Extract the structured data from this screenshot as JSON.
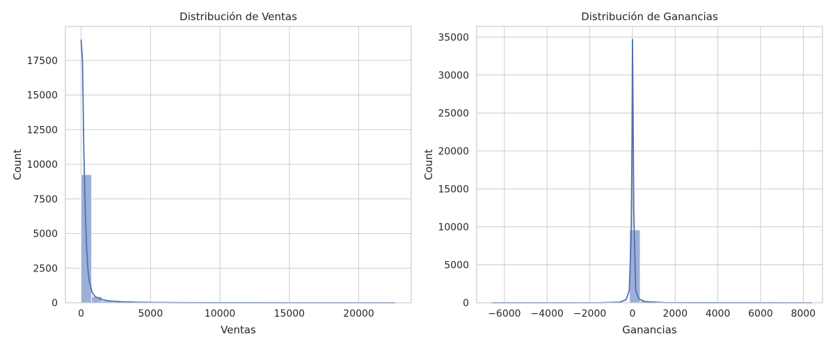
{
  "chart_data": [
    {
      "type": "histogram",
      "title": "Distribución de Ventas",
      "xlabel": "Ventas",
      "ylabel": "Count",
      "xlim": [
        -1130,
        23780
      ],
      "ylim": [
        0,
        19950
      ],
      "xticks": [
        0,
        5000,
        10000,
        15000,
        20000
      ],
      "yticks": [
        0,
        2500,
        5000,
        7500,
        10000,
        12500,
        15000,
        17500
      ],
      "grid": true,
      "bins": [
        {
          "x0": 0,
          "x1": 755,
          "count": 9250
        },
        {
          "x0": 755,
          "x1": 1510,
          "count": 440
        },
        {
          "x0": 1510,
          "x1": 2265,
          "count": 140
        },
        {
          "x0": 2265,
          "x1": 3020,
          "count": 80
        },
        {
          "x0": 3020,
          "x1": 3775,
          "count": 40
        },
        {
          "x0": 3775,
          "x1": 4530,
          "count": 25
        },
        {
          "x0": 4530,
          "x1": 5285,
          "count": 15
        },
        {
          "x0": 5285,
          "x1": 6040,
          "count": 8
        },
        {
          "x0": 6040,
          "x1": 6795,
          "count": 5
        },
        {
          "x0": 6795,
          "x1": 7550,
          "count": 3
        }
      ],
      "kde": {
        "x": [
          0,
          100,
          200,
          300,
          400,
          500,
          600,
          800,
          1000,
          1500,
          2000,
          2500,
          3000,
          4000,
          5000,
          7000,
          10000,
          15000,
          22640
        ],
        "y": [
          19000,
          17500,
          10800,
          6600,
          3900,
          2300,
          1500,
          750,
          450,
          230,
          140,
          100,
          70,
          40,
          25,
          10,
          4,
          1,
          0
        ]
      }
    },
    {
      "type": "histogram",
      "title": "Distribución de Ganancias",
      "xlabel": "Ganancias",
      "ylabel": "Count",
      "xlim": [
        -7300,
        8900
      ],
      "ylim": [
        0,
        36400
      ],
      "xticks": [
        -6000,
        -4000,
        -2000,
        0,
        2000,
        4000,
        6000,
        8000
      ],
      "yticks": [
        0,
        5000,
        10000,
        15000,
        20000,
        25000,
        30000,
        35000
      ],
      "grid": true,
      "bins": [
        {
          "x0": -6600,
          "x1": -6103,
          "count": 1
        },
        {
          "x0": -3120,
          "x1": -2623,
          "count": 2
        },
        {
          "x0": -2126,
          "x1": -1629,
          "count": 3
        },
        {
          "x0": -1132,
          "x1": -635,
          "count": 10
        },
        {
          "x0": -635,
          "x1": -138,
          "count": 60
        },
        {
          "x0": -138,
          "x1": 359,
          "count": 9600
        },
        {
          "x0": 359,
          "x1": 856,
          "count": 220
        },
        {
          "x0": 856,
          "x1": 1353,
          "count": 55
        },
        {
          "x0": 1353,
          "x1": 1850,
          "count": 25
        },
        {
          "x0": 1850,
          "x1": 2347,
          "count": 12
        },
        {
          "x0": 2347,
          "x1": 2844,
          "count": 6
        },
        {
          "x0": 2844,
          "x1": 3341,
          "count": 4
        },
        {
          "x0": 3341,
          "x1": 4000,
          "count": 3
        },
        {
          "x0": 5000,
          "x1": 5497,
          "count": 1
        },
        {
          "x0": 8300,
          "x1": 8400,
          "count": 1
        }
      ],
      "kde": {
        "x": [
          -6600,
          -3000,
          -1500,
          -600,
          -300,
          -150,
          -60,
          -20,
          0,
          20,
          60,
          150,
          300,
          600,
          1500,
          3000,
          8400
        ],
        "y": [
          0,
          3,
          15,
          80,
          400,
          1600,
          9000,
          22000,
          34700,
          28000,
          12000,
          1600,
          500,
          150,
          25,
          5,
          0
        ]
      }
    }
  ],
  "style": {
    "bar_color": "#9eb0d8",
    "bar_edge_color": "#ffffff",
    "line_color": "#4c72b0",
    "grid_color": "#cccccc",
    "frame_color": "#cccccc",
    "text_color": "#262626"
  }
}
